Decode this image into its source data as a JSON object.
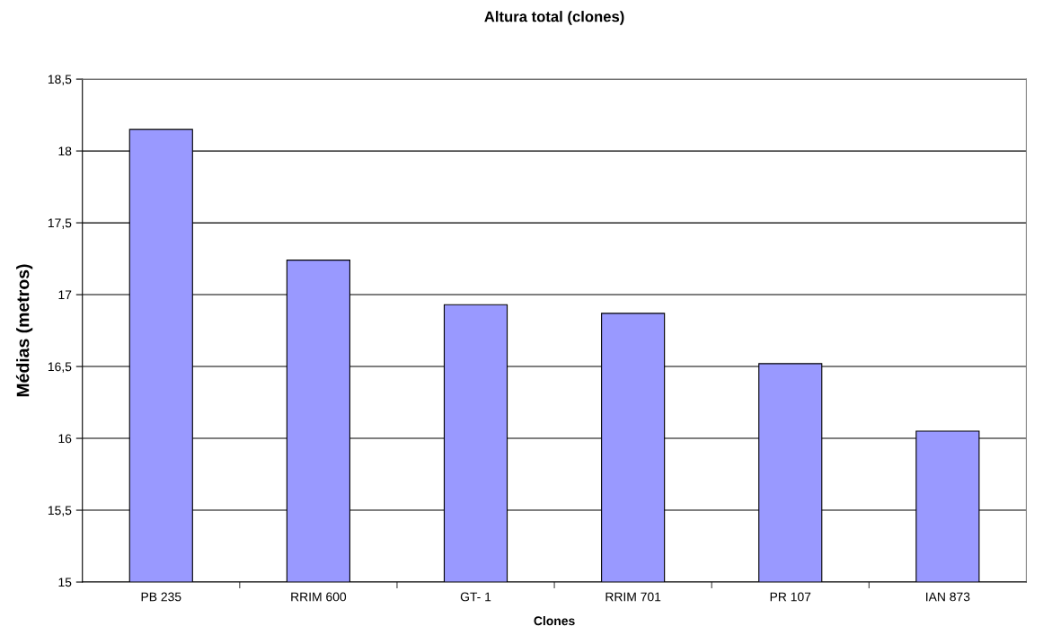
{
  "chart_data": {
    "type": "bar",
    "title": "Altura total (clones)",
    "xlabel": "Clones",
    "ylabel": "Médias (metros)",
    "categories": [
      "PB 235",
      "RRIM 600",
      "GT- 1",
      "RRIM 701",
      "PR 107",
      "IAN 873"
    ],
    "values": [
      18.15,
      17.24,
      16.93,
      16.87,
      16.52,
      16.05
    ],
    "color": "#9999ff",
    "ylim": [
      15,
      18.5
    ],
    "yticks": [
      15,
      {
        "value": 15.5,
        "label": "15,5"
      },
      16,
      {
        "value": 16.5,
        "label": "16,5"
      },
      17,
      {
        "value": 17.5,
        "label": "17,5"
      },
      18,
      {
        "value": 18.5,
        "label": "18,5"
      }
    ],
    "grid": "y",
    "legend": false
  }
}
